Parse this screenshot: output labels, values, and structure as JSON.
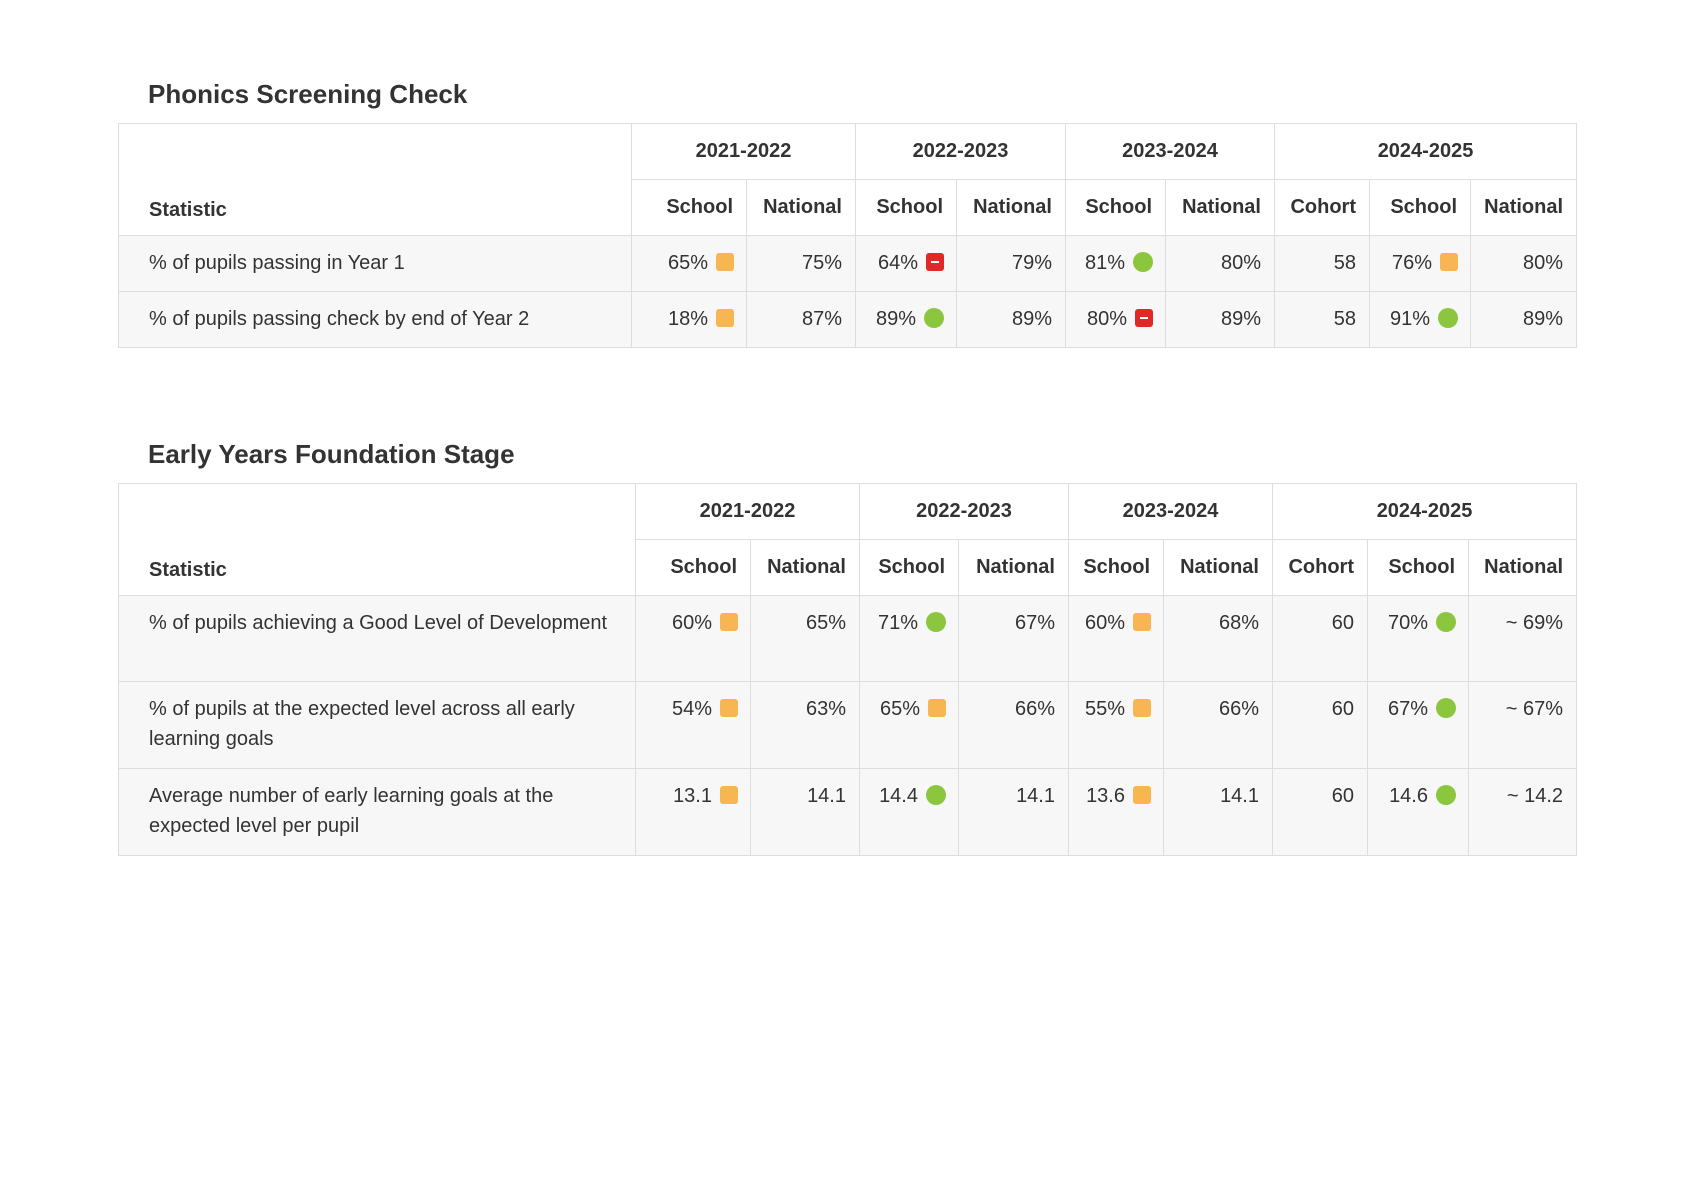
{
  "indicator_colors": {
    "amber": "#f8b652",
    "green": "#8cc63f",
    "red": "#e32726"
  },
  "phonics": {
    "title": "Phonics Screening Check",
    "stat_header": "Statistic",
    "years": [
      "2021-2022",
      "2022-2023",
      "2023-2024",
      "2024-2025"
    ],
    "sub": {
      "school": "School",
      "national": "National",
      "cohort": "Cohort"
    },
    "rows": [
      {
        "label": "% of pupils passing in Year 1",
        "y2122_school": "65%",
        "y2122_school_ind": "amber-square-icon",
        "y2122_national": "75%",
        "y2223_school": "64%",
        "y2223_school_ind": "red-minus-icon",
        "y2223_national": "79%",
        "y2324_school": "81%",
        "y2324_school_ind": "green-circle-icon",
        "y2324_national": "80%",
        "y2425_cohort": "58",
        "y2425_school": "76%",
        "y2425_school_ind": "amber-square-icon",
        "y2425_national": "80%"
      },
      {
        "label": "% of pupils passing check by end of Year 2",
        "y2122_school": "18%",
        "y2122_school_ind": "amber-square-icon",
        "y2122_national": "87%",
        "y2223_school": "89%",
        "y2223_school_ind": "green-circle-icon",
        "y2223_national": "89%",
        "y2324_school": "80%",
        "y2324_school_ind": "red-minus-icon",
        "y2324_national": "89%",
        "y2425_cohort": "58",
        "y2425_school": "91%",
        "y2425_school_ind": "green-circle-icon",
        "y2425_national": "89%"
      }
    ]
  },
  "eyfs": {
    "title": "Early Years Foundation Stage",
    "stat_header": "Statistic",
    "years": [
      "2021-2022",
      "2022-2023",
      "2023-2024",
      "2024-2025"
    ],
    "sub": {
      "school": "School",
      "national": "National",
      "cohort": "Cohort"
    },
    "rows": [
      {
        "label": "% of pupils achieving a Good Level of Development",
        "y2122_school": "60%",
        "y2122_school_ind": "amber-square-icon",
        "y2122_national": "65%",
        "y2223_school": "71%",
        "y2223_school_ind": "green-circle-icon",
        "y2223_national": "67%",
        "y2324_school": "60%",
        "y2324_school_ind": "amber-square-icon",
        "y2324_national": "68%",
        "y2425_cohort": "60",
        "y2425_school": "70%",
        "y2425_school_ind": "green-circle-icon",
        "y2425_national": "~ 69%"
      },
      {
        "label": "% of pupils at the expected level across all early learning goals",
        "y2122_school": "54%",
        "y2122_school_ind": "amber-square-icon",
        "y2122_national": "63%",
        "y2223_school": "65%",
        "y2223_school_ind": "amber-square-icon",
        "y2223_national": "66%",
        "y2324_school": "55%",
        "y2324_school_ind": "amber-square-icon",
        "y2324_national": "66%",
        "y2425_cohort": "60",
        "y2425_school": "67%",
        "y2425_school_ind": "green-circle-icon",
        "y2425_national": "~ 67%"
      },
      {
        "label": "Average number of early learning goals at the expected level per pupil",
        "y2122_school": "13.1",
        "y2122_school_ind": "amber-square-icon",
        "y2122_national": "14.1",
        "y2223_school": "14.4",
        "y2223_school_ind": "green-circle-icon",
        "y2223_national": "14.1",
        "y2324_school": "13.6",
        "y2324_school_ind": "amber-square-icon",
        "y2324_national": "14.1",
        "y2425_cohort": "60",
        "y2425_school": "14.6",
        "y2425_school_ind": "green-circle-icon",
        "y2425_national": "~ 14.2"
      }
    ]
  }
}
